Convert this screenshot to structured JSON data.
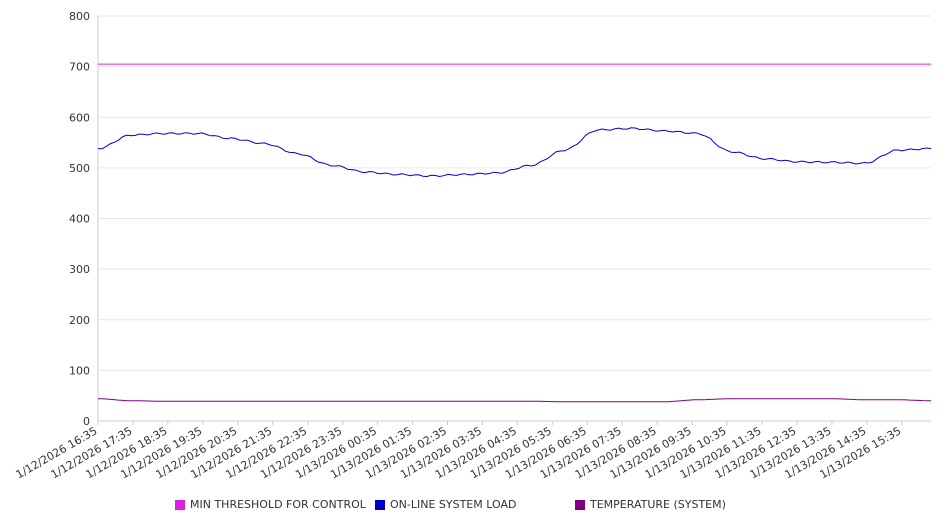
{
  "chart_data": {
    "type": "line",
    "title": "",
    "xlabel": "",
    "ylabel": "",
    "ylim": [
      0,
      800
    ],
    "yticks": [
      "0",
      "100",
      "200",
      "300",
      "400",
      "500",
      "600",
      "700",
      "800"
    ],
    "x_ticks": [
      "1/12/2026 16:35",
      "1/12/2026 17:35",
      "1/12/2026 18:35",
      "1/12/2026 19:35",
      "1/12/2026 20:35",
      "1/12/2026 21:35",
      "1/12/2026 22:35",
      "1/12/2026 23:35",
      "1/13/2026 00:35",
      "1/13/2026 01:35",
      "1/13/2026 02:35",
      "1/13/2026 03:35",
      "1/13/2026 04:35",
      "1/13/2026 05:35",
      "1/13/2026 06:35",
      "1/13/2026 07:35",
      "1/13/2026 08:35",
      "1/13/2026 09:35",
      "1/13/2026 10:35",
      "1/13/2026 11:35",
      "1/13/2026 12:35",
      "1/13/2026 13:35",
      "1/13/2026 14:35",
      "1/13/2026 15:35"
    ],
    "grid": true,
    "legend_position": "bottom",
    "series": [
      {
        "name": "MIN THRESHOLD FOR CONTROL",
        "color": "#e020e0",
        "values": [
          705,
          705,
          705,
          705,
          705,
          705,
          705,
          705,
          705,
          705,
          705,
          705,
          705,
          705,
          705,
          705,
          705,
          705,
          705,
          705,
          705,
          705,
          705,
          705,
          705
        ]
      },
      {
        "name": "ON-LINE SYSTEM LOAD",
        "color": "#0000cc",
        "values": [
          538,
          565,
          568,
          568,
          558,
          548,
          528,
          505,
          492,
          487,
          484,
          487,
          490,
          505,
          535,
          575,
          578,
          573,
          568,
          532,
          518,
          512,
          511,
          509,
          535,
          538
        ]
      },
      {
        "name": "TEMPERATURE (SYSTEM)",
        "color": "#800080",
        "values": [
          44,
          40,
          39,
          39,
          39,
          39,
          39,
          39,
          39,
          39,
          39,
          39,
          39,
          39,
          38,
          38,
          38,
          38,
          42,
          44,
          44,
          44,
          44,
          42,
          42,
          40
        ]
      }
    ]
  }
}
